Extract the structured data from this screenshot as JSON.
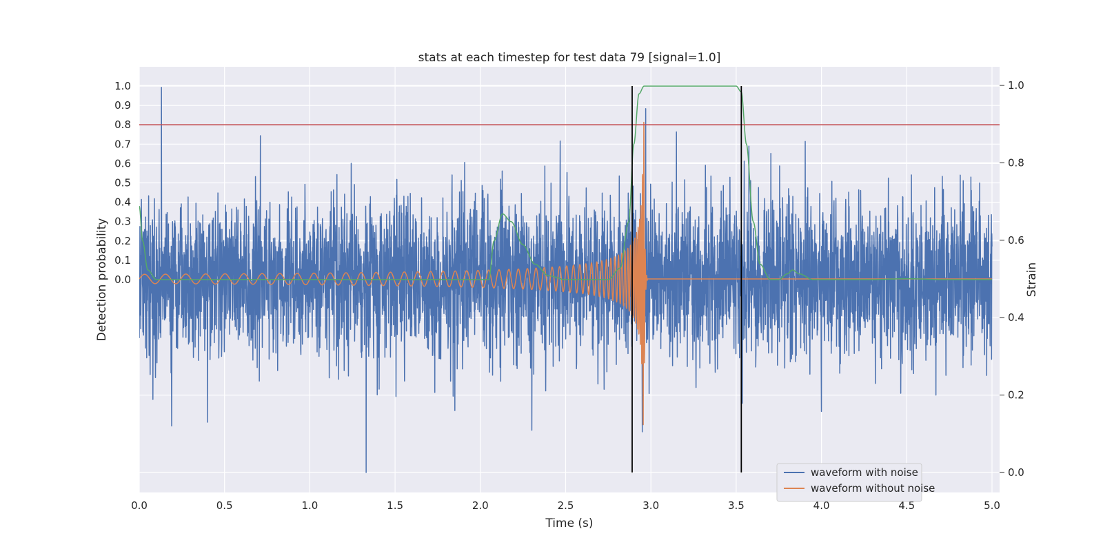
{
  "chart_data": {
    "type": "line",
    "title": "stats at each timestep for test data 79 [signal=1.0]",
    "xlabel": "Time (s)",
    "ylabel_left": "Detection probability",
    "ylabel_right": "Strain",
    "xlim": [
      0.0,
      5.05
    ],
    "left_axis": {
      "ticks": [
        0.0,
        0.1,
        0.2,
        0.3,
        0.4,
        0.5,
        0.6,
        0.7,
        0.8,
        0.9,
        1.0
      ],
      "tick_labels": [
        "0.0",
        "0.1",
        "0.2",
        "0.3",
        "0.4",
        "0.5",
        "0.6",
        "0.7",
        "0.8",
        "0.9",
        "1.0"
      ]
    },
    "right_axis": {
      "ylim": [
        -0.047,
        1.047
      ],
      "ticks": [
        0.0,
        0.2,
        0.4,
        0.6,
        0.8,
        1.0
      ],
      "tick_labels": [
        "0.0",
        "0.2",
        "0.4",
        "0.6",
        "0.8",
        "1.0"
      ]
    },
    "x_ticks": [
      0.0,
      0.5,
      1.0,
      1.5,
      2.0,
      2.5,
      3.0,
      3.5,
      4.0,
      4.5,
      5.0
    ],
    "x_tick_labels": [
      "0.0",
      "0.5",
      "1.0",
      "1.5",
      "2.0",
      "2.5",
      "3.0",
      "3.5",
      "4.0",
      "4.5",
      "5.0"
    ],
    "grid": true,
    "legend_position": "lower-right",
    "threshold": {
      "value": 0.8,
      "axis": "left",
      "color": "#c44e52"
    },
    "vertical_markers": [
      2.89,
      3.53
    ],
    "series": [
      {
        "name": "waveform with noise",
        "axis": "right",
        "color": "#4c72b0",
        "kind": "noise",
        "points": 4000,
        "mean": 0.5,
        "std": 0.1,
        "extrema": [
          [
            0.13,
            0.995
          ],
          [
            0.19,
            0.12
          ],
          [
            0.4,
            0.13
          ],
          [
            0.71,
            0.87
          ],
          [
            1.33,
            0.0
          ],
          [
            2.95,
            0.105
          ],
          [
            3.15,
            0.88
          ],
          [
            1.85,
            0.16
          ],
          [
            2.97,
            0.94
          ]
        ]
      },
      {
        "name": "waveform without noise",
        "axis": "right",
        "color": "#dd8452",
        "kind": "chirp",
        "start": 0.0,
        "merger": 2.96,
        "baseline": 0.5,
        "amplitude_start": 0.012,
        "amplitude_peak": 0.42,
        "frequency_start": 8.0,
        "frequency_peak": 120.0
      },
      {
        "name": "",
        "axis": "left",
        "color": "#55a868",
        "kind": "probability",
        "keypoints": [
          [
            0.0,
            0.38
          ],
          [
            0.02,
            0.2
          ],
          [
            0.05,
            0.05
          ],
          [
            0.1,
            0.0
          ],
          [
            2.05,
            0.0
          ],
          [
            2.08,
            0.2
          ],
          [
            2.13,
            0.34
          ],
          [
            2.18,
            0.3
          ],
          [
            2.25,
            0.18
          ],
          [
            2.32,
            0.08
          ],
          [
            2.4,
            0.02
          ],
          [
            2.5,
            0.0
          ],
          [
            2.75,
            0.0
          ],
          [
            2.82,
            0.06
          ],
          [
            2.87,
            0.3
          ],
          [
            2.9,
            0.7
          ],
          [
            2.93,
            0.96
          ],
          [
            2.96,
            1.0
          ],
          [
            3.5,
            1.0
          ],
          [
            3.53,
            0.97
          ],
          [
            3.56,
            0.7
          ],
          [
            3.6,
            0.3
          ],
          [
            3.64,
            0.08
          ],
          [
            3.7,
            0.0
          ],
          [
            3.75,
            0.0
          ],
          [
            3.8,
            0.03
          ],
          [
            3.83,
            0.05
          ],
          [
            3.87,
            0.03
          ],
          [
            3.95,
            0.0
          ],
          [
            4.3,
            0.0
          ],
          [
            4.5,
            0.005
          ],
          [
            4.7,
            0.0
          ],
          [
            5.0,
            0.0
          ]
        ]
      }
    ]
  }
}
